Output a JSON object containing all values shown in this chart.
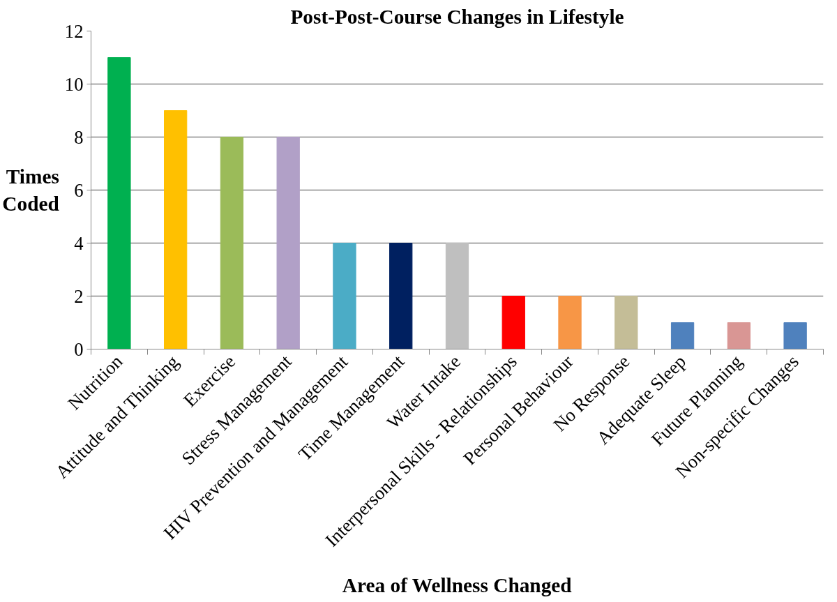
{
  "chart_data": {
    "type": "bar",
    "title": "Post-Post-Course Changes in Lifestyle",
    "xlabel": "Area of Wellness Changed",
    "ylabel": "Times Coded",
    "categories": [
      "Nutrition",
      "Attitude and Thinking",
      "Exercise",
      "Stress Management",
      "HIV Prevention and Management",
      "Time Management",
      "Water Intake",
      "Interpersonal Skills - Relationships",
      "Personal Behaviour",
      "No Response",
      "Adequate Sleep",
      "Future Planning",
      "Non-specific Changes"
    ],
    "values": [
      11,
      9,
      8,
      8,
      4,
      4,
      4,
      2,
      2,
      2,
      1,
      1,
      1
    ],
    "colors": [
      "#00b050",
      "#ffc000",
      "#9bbb59",
      "#b1a0c7",
      "#4bacc6",
      "#002060",
      "#bfbfbf",
      "#ff0000",
      "#f79646",
      "#c4bd97",
      "#4f81bd",
      "#d99694",
      "#4f81bd"
    ],
    "ylim": [
      0,
      12
    ],
    "yticks": [
      0,
      2,
      4,
      6,
      8,
      10,
      12
    ],
    "grid": "y"
  }
}
